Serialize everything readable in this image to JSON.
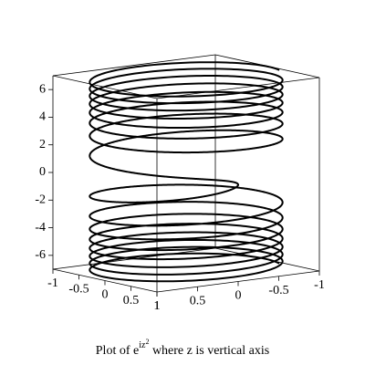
{
  "chart_data": {
    "type": "spacecurve",
    "title": {
      "prefix": "Plot of e",
      "exponent": "iz",
      "exponent_power": "2",
      "suffix": " where z is vertical axis"
    },
    "xlim": [
      -1,
      1
    ],
    "xticks": [
      -1,
      -0.5,
      0,
      0.5,
      1
    ],
    "ylim": [
      -1,
      1
    ],
    "yticks": [
      1,
      0.5,
      0,
      -0.5,
      -1
    ],
    "zlim": [
      -7,
      7
    ],
    "zticks": [
      -6,
      -4,
      -2,
      0,
      2,
      4,
      6
    ],
    "color": "#000000"
  }
}
